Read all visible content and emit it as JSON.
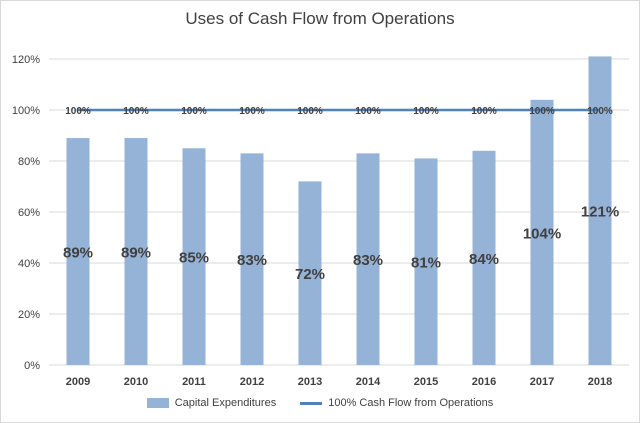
{
  "chart_data": {
    "type": "bar",
    "title": "Uses of Cash Flow from Operations",
    "categories": [
      "2009",
      "2010",
      "2011",
      "2012",
      "2013",
      "2014",
      "2015",
      "2016",
      "2017",
      "2018"
    ],
    "series": [
      {
        "name": "Capital Expenditures",
        "kind": "bar",
        "color": "#95b3d7",
        "values": [
          89,
          89,
          85,
          83,
          72,
          83,
          81,
          84,
          104,
          121
        ],
        "labels": [
          "89%",
          "89%",
          "85%",
          "83%",
          "72%",
          "83%",
          "81%",
          "84%",
          "104%",
          "121%"
        ]
      },
      {
        "name": "100% Cash Flow from Operations",
        "kind": "line",
        "color": "#4f81bd",
        "values": [
          100,
          100,
          100,
          100,
          100,
          100,
          100,
          100,
          100,
          100
        ],
        "labels": [
          "100%",
          "100%",
          "100%",
          "100%",
          "100%",
          "100%",
          "100%",
          "100%",
          "100%",
          "100%"
        ]
      }
    ],
    "ylim": [
      0,
      120
    ],
    "yticks": [
      0,
      20,
      40,
      60,
      80,
      100,
      120
    ],
    "ytick_labels": [
      "0%",
      "20%",
      "40%",
      "60%",
      "80%",
      "100%",
      "120%"
    ],
    "grid": true,
    "legend_position": "bottom"
  }
}
